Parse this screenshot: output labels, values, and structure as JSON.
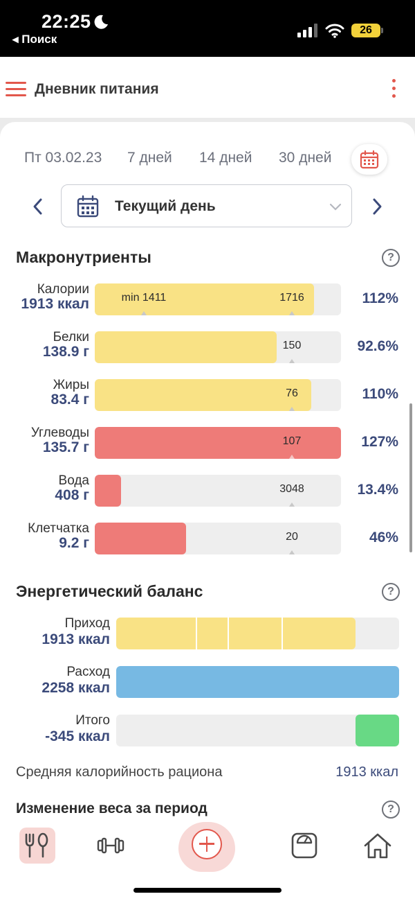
{
  "status_bar": {
    "time": "22:25",
    "back_label": "◂ Поиск",
    "battery": "26"
  },
  "header": {
    "title": "Дневник питания"
  },
  "period_tabs": [
    {
      "label": "Пт 03.02.23"
    },
    {
      "label": "7 дней"
    },
    {
      "label": "14 дней"
    },
    {
      "label": "30 дней"
    }
  ],
  "day_selector": {
    "label": "Текущий день"
  },
  "macros": {
    "title": "Макронутриенты",
    "help": "?",
    "rows": [
      {
        "name": "Калории",
        "value": "1913 ккал",
        "target": "1716",
        "min": "min 1411",
        "percent": "112%",
        "fill": 0.89,
        "color": "#f9e285"
      },
      {
        "name": "Белки",
        "value": "138.9 г",
        "target": "150",
        "percent": "92.6%",
        "fill": 0.74,
        "color": "#f9e285"
      },
      {
        "name": "Жиры",
        "value": "83.4 г",
        "target": "76",
        "percent": "110%",
        "fill": 0.88,
        "color": "#f9e285"
      },
      {
        "name": "Углеводы",
        "value": "135.7 г",
        "target": "107",
        "percent": "127%",
        "fill": 1.0,
        "color": "#ee7b78"
      },
      {
        "name": "Вода",
        "value": "408 г",
        "target": "3048",
        "percent": "13.4%",
        "fill": 0.107,
        "color": "#ee7b78"
      },
      {
        "name": "Клетчатка",
        "value": "9.2 г",
        "target": "20",
        "percent": "46%",
        "fill": 0.37,
        "color": "#ee7b78"
      }
    ]
  },
  "energy": {
    "title": "Энергетический баланс",
    "help": "?",
    "rows": [
      {
        "name": "Приход",
        "value": "1913 ккал",
        "fill": 0.847,
        "color": "#f9e285"
      },
      {
        "name": "Расход",
        "value": "2258 ккал",
        "fill": 1.0,
        "color": "#77b9e3"
      },
      {
        "name": "Итого",
        "value": "-345 ккал",
        "fill": 0.153,
        "color": "#68d985"
      }
    ],
    "avg_label": "Средняя калорийность рациона",
    "avg_value": "1913 ккал"
  },
  "weight_change": {
    "title": "Изменение веса за период",
    "help": "?"
  },
  "bottom_nav": [
    "food-icon",
    "dumbbell-icon",
    "add-icon",
    "scale-icon",
    "home-icon"
  ]
}
